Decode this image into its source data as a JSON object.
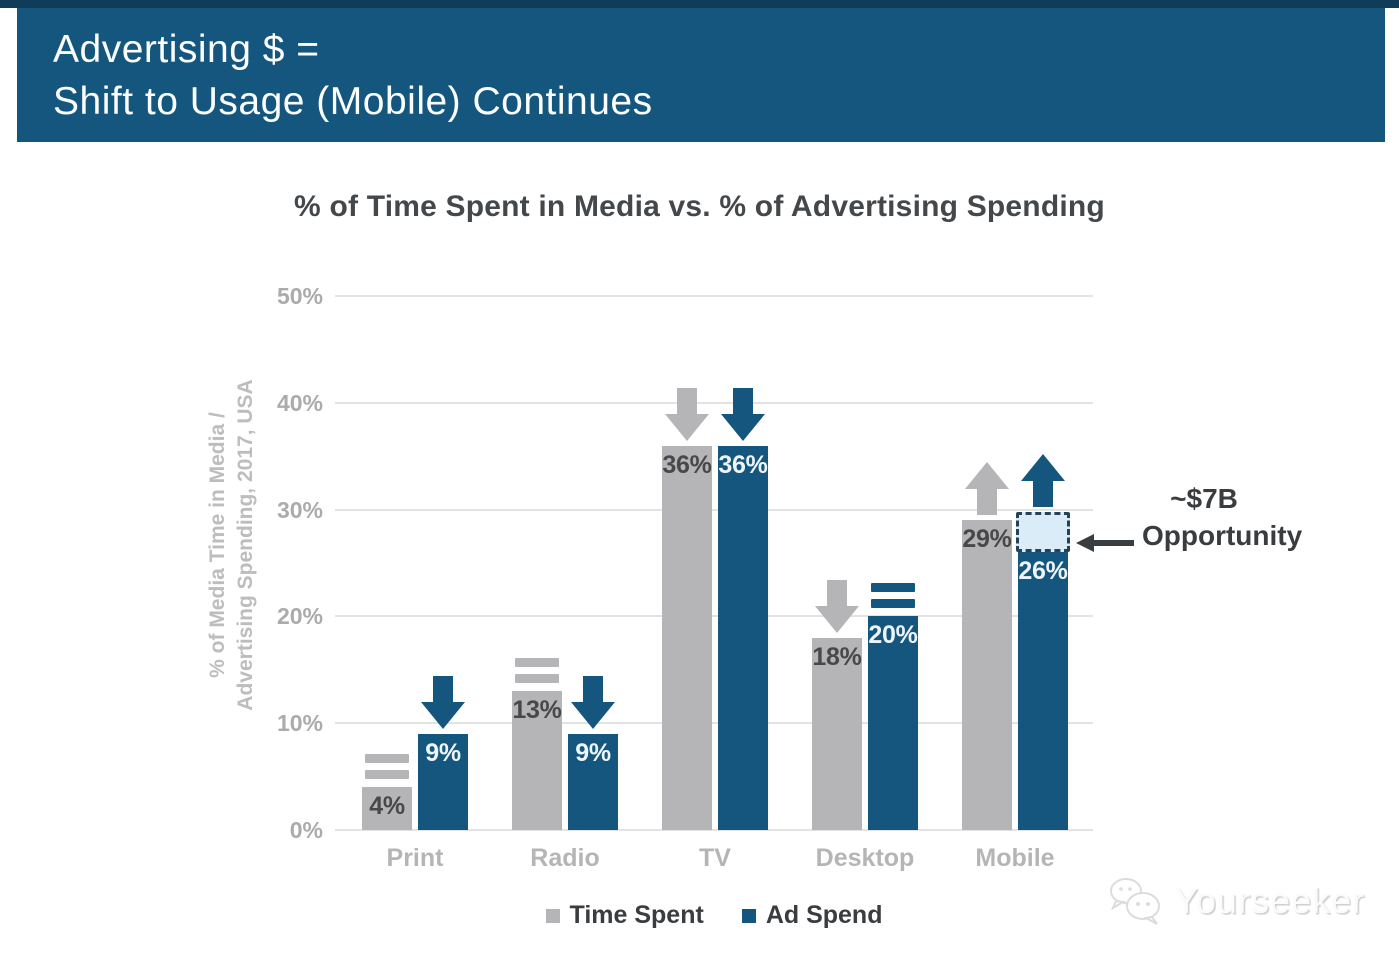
{
  "banner": {
    "line1": "Advertising $ =",
    "line2": "Shift to Usage (Mobile) Continues",
    "bg_color": "#15567e"
  },
  "chart_data": {
    "type": "bar",
    "title": "% of Time Spent in Media vs. % of Advertising Spending",
    "ylabel_line1": "% of Media Time in Media /",
    "ylabel_line2": "Advertising Spending, 2017, USA",
    "ylim": [
      0,
      50
    ],
    "yticks": [
      "0%",
      "10%",
      "20%",
      "30%",
      "40%",
      "50%"
    ],
    "ytick_values": [
      0,
      10,
      20,
      30,
      40,
      50
    ],
    "grid": true,
    "legend_position": "bottom",
    "categories": [
      "Print",
      "Radio",
      "TV",
      "Desktop",
      "Mobile"
    ],
    "series": [
      {
        "name": "Time Spent",
        "color": "#b5b5b7",
        "values": [
          4,
          13,
          36,
          18,
          29
        ],
        "labels": [
          "4%",
          "13%",
          "36%",
          "18%",
          "29%"
        ],
        "trends": [
          "flat",
          "flat",
          "down",
          "down",
          "up"
        ]
      },
      {
        "name": "Ad Spend",
        "color": "#15567e",
        "values": [
          9,
          9,
          36,
          20,
          26
        ],
        "labels": [
          "9%",
          "9%",
          "36%",
          "20%",
          "26%"
        ],
        "trends": [
          "down",
          "down",
          "down",
          "flat",
          "up"
        ]
      }
    ],
    "annotation": {
      "value_label": "~$7B",
      "label": "Opportunity",
      "applies_to": "Mobile Ad Spend",
      "box_from_pct": 26,
      "box_to_pct": 29.8,
      "box_fill": "#d9ecf8",
      "box_border": "#24425a"
    }
  },
  "watermark": {
    "text": "Yourseeker"
  }
}
